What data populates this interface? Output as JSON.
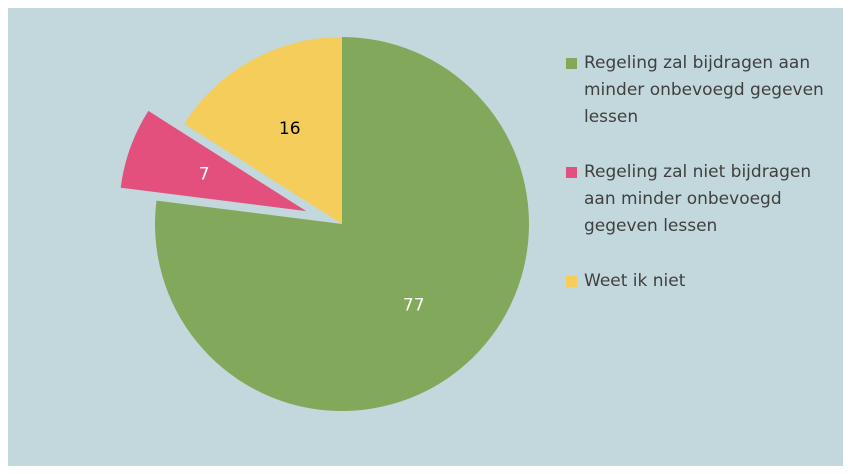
{
  "chart_data": {
    "type": "pie",
    "categories": [
      "Regeling zal bijdragen aan minder onbevoegd gegeven lessen",
      "Regeling zal niet bijdragen aan minder onbevoegd gegeven lessen",
      "Weet ik niet"
    ],
    "values": [
      77,
      7,
      16
    ],
    "colors": [
      "#82a85c",
      "#e3507e",
      "#f4cd5b"
    ],
    "label_colors": [
      "#ffffff",
      "#ffffff",
      "#000000"
    ],
    "explode": [
      false,
      true,
      false
    ],
    "legend": "right"
  }
}
